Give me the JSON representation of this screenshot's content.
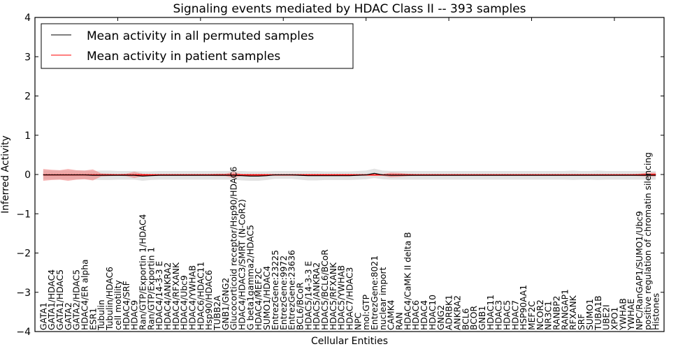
{
  "chart_data": {
    "type": "line",
    "title": "Signaling events mediated by HDAC Class II -- 393 samples",
    "xlabel": "Cellular Entities",
    "ylabel": "Inferred Activity",
    "ylim": [
      -4,
      4
    ],
    "xlim": [
      0,
      76
    ],
    "yticks": [
      -4,
      -3,
      -2,
      -1,
      0,
      1,
      2,
      3,
      4
    ],
    "grid": false,
    "legend_position": "top-left",
    "colors": {
      "permuted": "#000000",
      "patient": "#ff0000",
      "permuted_band": "#d9d9d9",
      "patient_band": "#f08080"
    },
    "categories": [
      "GATA1",
      "GATA1/HDAC4",
      "GATA1/HDAC5",
      "GATA2",
      "GATA2/HDAC5",
      "HDAC4/ER alpha",
      "ESR1",
      "Tubulin",
      "Tubulin/HDAC6",
      "cell motility",
      "HDAC4/SRF",
      "HDAC9",
      "Ran/GTP/Exportin 1/HDAC4",
      "Ran/GTP/Exportin 1",
      "HDAC4/14-3-3 E",
      "HDAC4/ANKRA2",
      "HDAC4/RFXANK",
      "HDAC4/Ubc9",
      "HDAC4/YWHAB",
      "HDAC6/HDAC11",
      "Hsp90/HDAC6",
      "TUBB2A",
      "GNB1/GNG2",
      "Glucocorticoid receptor/Hsp90/HDAC6",
      "HDAC4/HDAC3/SMRT (N-CoR2)",
      "G beta1gamma2/HDAC5",
      "HDAC4/MEF2C",
      "SUMO1/HDAC4",
      "EntrezGene:23225",
      "EntrezGene:9972",
      "EntrezGene:23636",
      "BCL6/BCoR",
      "HDAC5/14-3-3 E",
      "HDAC5/ANKRA2",
      "HDAC5/BCL6/BCoR",
      "HDAC5/RFXANK",
      "HDAC5/YWHAB",
      "HDAC7/HDAC3",
      "NPC",
      "mol:GTP",
      "EntrezGene:8021",
      "nuclear import",
      "CAMK4",
      "RAN",
      "HDAC4/CaMK II delta B",
      "HDAC6",
      "HDAC4",
      "HDAC10",
      "GNG2",
      "ADRBK1",
      "ANKRA2",
      "BCL6",
      "BCOR",
      "GNB1",
      "HDAC11",
      "HDAC3",
      "HDAC5",
      "HDAC7",
      "HSP90AA1",
      "MEF2C",
      "NCOR2",
      "NR3C1",
      "RANBP2",
      "RANGAP1",
      "RFXANK",
      "SRF",
      "SUMO1",
      "TUBA1B",
      "UBE2I",
      "XPO1",
      "YWHAB",
      "YWHAE",
      "NPC/RanGAP1/SUMO1/Ubc9",
      "positive regulation of chromatin silencing",
      "Histones"
    ],
    "series": [
      {
        "name": "Mean activity in all permuted samples",
        "values": [
          -0.01,
          -0.01,
          -0.01,
          -0.01,
          -0.01,
          -0.01,
          -0.02,
          -0.02,
          -0.02,
          -0.02,
          -0.02,
          -0.02,
          -0.04,
          -0.03,
          -0.02,
          -0.02,
          -0.02,
          -0.02,
          -0.02,
          -0.02,
          -0.02,
          -0.02,
          -0.02,
          -0.02,
          -0.03,
          -0.04,
          -0.04,
          -0.03,
          -0.01,
          -0.01,
          -0.01,
          -0.02,
          -0.03,
          -0.03,
          -0.03,
          -0.03,
          -0.03,
          -0.03,
          -0.02,
          -0.01,
          0.03,
          -0.01,
          -0.02,
          -0.02,
          -0.02,
          -0.02,
          -0.02,
          -0.02,
          -0.02,
          -0.02,
          -0.02,
          -0.02,
          -0.02,
          -0.02,
          -0.02,
          -0.02,
          -0.02,
          -0.02,
          -0.02,
          -0.02,
          -0.02,
          -0.02,
          -0.02,
          -0.02,
          -0.02,
          -0.02,
          -0.02,
          -0.02,
          -0.02,
          -0.02,
          -0.02,
          -0.02,
          -0.02,
          -0.02,
          -0.02
        ],
        "spread": [
          0.11,
          0.11,
          0.11,
          0.11,
          0.11,
          0.11,
          0.11,
          0.12,
          0.12,
          0.11,
          0.11,
          0.11,
          0.12,
          0.11,
          0.11,
          0.11,
          0.11,
          0.11,
          0.11,
          0.11,
          0.11,
          0.11,
          0.11,
          0.11,
          0.12,
          0.12,
          0.12,
          0.11,
          0.1,
          0.1,
          0.1,
          0.11,
          0.12,
          0.12,
          0.11,
          0.11,
          0.11,
          0.11,
          0.11,
          0.11,
          0.12,
          0.11,
          0.11,
          0.11,
          0.11,
          0.11,
          0.11,
          0.11,
          0.11,
          0.11,
          0.11,
          0.11,
          0.11,
          0.11,
          0.11,
          0.11,
          0.11,
          0.11,
          0.11,
          0.11,
          0.11,
          0.11,
          0.11,
          0.11,
          0.12,
          0.11,
          0.11,
          0.12,
          0.11,
          0.11,
          0.11,
          0.11,
          0.11,
          0.11,
          0.11
        ]
      },
      {
        "name": "Mean activity in patient samples",
        "values": [
          -0.01,
          -0.01,
          -0.01,
          -0.01,
          -0.01,
          -0.01,
          -0.01,
          -0.01,
          -0.01,
          -0.01,
          -0.01,
          -0.01,
          -0.01,
          -0.01,
          -0.01,
          -0.01,
          -0.01,
          -0.01,
          -0.01,
          -0.01,
          -0.01,
          -0.01,
          -0.01,
          -0.01,
          -0.01,
          -0.01,
          -0.01,
          -0.01,
          -0.01,
          -0.01,
          -0.01,
          -0.01,
          -0.01,
          -0.01,
          -0.01,
          -0.01,
          -0.01,
          -0.01,
          -0.01,
          -0.01,
          -0.01,
          -0.01,
          -0.01,
          -0.01,
          -0.01,
          -0.01,
          -0.01,
          -0.01,
          -0.01,
          -0.01,
          -0.01,
          -0.01,
          -0.01,
          -0.01,
          -0.01,
          -0.01,
          -0.01,
          -0.01,
          -0.01,
          -0.01,
          -0.01,
          -0.01,
          -0.01,
          -0.01,
          -0.01,
          -0.01,
          -0.01,
          -0.01,
          -0.01,
          -0.01,
          -0.01,
          -0.01,
          -0.01,
          0.0,
          0.0
        ],
        "spread": [
          0.15,
          0.13,
          0.12,
          0.15,
          0.12,
          0.11,
          0.14,
          0.04,
          0.03,
          0.02,
          0.03,
          0.08,
          0.03,
          0.02,
          0.02,
          0.02,
          0.02,
          0.02,
          0.02,
          0.02,
          0.02,
          0.03,
          0.03,
          0.08,
          0.02,
          0.02,
          0.02,
          0.02,
          0.02,
          0.02,
          0.02,
          0.02,
          0.02,
          0.02,
          0.02,
          0.02,
          0.02,
          0.02,
          0.02,
          0.02,
          0.02,
          0.02,
          0.06,
          0.05,
          0.03,
          0.02,
          0.02,
          0.02,
          0.02,
          0.02,
          0.02,
          0.02,
          0.02,
          0.02,
          0.02,
          0.02,
          0.02,
          0.02,
          0.02,
          0.02,
          0.02,
          0.02,
          0.02,
          0.02,
          0.02,
          0.02,
          0.02,
          0.02,
          0.02,
          0.02,
          0.02,
          0.02,
          0.03,
          0.05,
          0.05
        ]
      }
    ]
  }
}
